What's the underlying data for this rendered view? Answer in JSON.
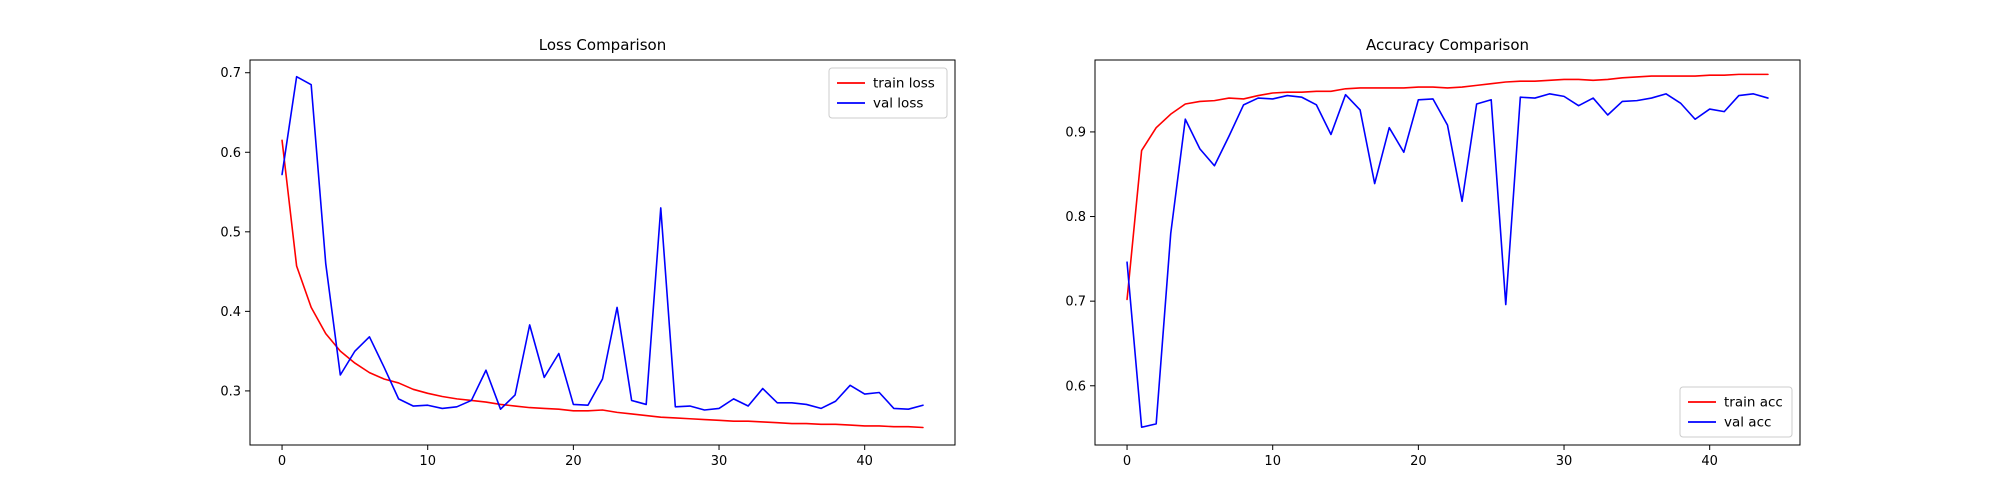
{
  "chart_data": [
    {
      "type": "line",
      "title": "Loss Comparison",
      "xlabel": "",
      "ylabel": "",
      "xlim": [
        -2.2,
        46.2
      ],
      "ylim": [
        0.232,
        0.716
      ],
      "xticks": [
        0,
        10,
        20,
        30,
        40
      ],
      "yticks": [
        0.3,
        0.4,
        0.5,
        0.6,
        0.7
      ],
      "ytick_labels": [
        "0.3",
        "0.4",
        "0.5",
        "0.6",
        "0.7"
      ],
      "grid": false,
      "legend_position": "upper-right",
      "series": [
        {
          "name": "train loss",
          "color": "#ff0000",
          "x": [
            0,
            1,
            2,
            3,
            4,
            5,
            6,
            7,
            8,
            9,
            10,
            11,
            12,
            13,
            14,
            15,
            16,
            17,
            18,
            19,
            20,
            21,
            22,
            23,
            24,
            25,
            26,
            27,
            28,
            29,
            30,
            31,
            32,
            33,
            34,
            35,
            36,
            37,
            38,
            39,
            40,
            41,
            42,
            43,
            44
          ],
          "values": [
            0.615,
            0.457,
            0.405,
            0.372,
            0.35,
            0.335,
            0.323,
            0.315,
            0.31,
            0.302,
            0.297,
            0.293,
            0.29,
            0.288,
            0.286,
            0.283,
            0.281,
            0.279,
            0.278,
            0.277,
            0.275,
            0.275,
            0.276,
            0.273,
            0.271,
            0.269,
            0.267,
            0.266,
            0.265,
            0.264,
            0.263,
            0.262,
            0.262,
            0.261,
            0.26,
            0.259,
            0.259,
            0.258,
            0.258,
            0.257,
            0.256,
            0.256,
            0.255,
            0.255,
            0.254
          ]
        },
        {
          "name": "val loss",
          "color": "#0000ff",
          "x": [
            0,
            1,
            2,
            3,
            4,
            5,
            6,
            7,
            8,
            9,
            10,
            11,
            12,
            13,
            14,
            15,
            16,
            17,
            18,
            19,
            20,
            21,
            22,
            23,
            24,
            25,
            26,
            27,
            28,
            29,
            30,
            31,
            32,
            33,
            34,
            35,
            36,
            37,
            38,
            39,
            40,
            41,
            42,
            43,
            44
          ],
          "values": [
            0.572,
            0.695,
            0.685,
            0.46,
            0.32,
            0.35,
            0.368,
            0.33,
            0.29,
            0.281,
            0.282,
            0.278,
            0.28,
            0.288,
            0.326,
            0.277,
            0.295,
            0.383,
            0.317,
            0.347,
            0.283,
            0.282,
            0.315,
            0.405,
            0.288,
            0.283,
            0.53,
            0.28,
            0.281,
            0.276,
            0.278,
            0.29,
            0.281,
            0.303,
            0.285,
            0.285,
            0.283,
            0.278,
            0.287,
            0.307,
            0.296,
            0.298,
            0.278,
            0.277,
            0.282
          ]
        }
      ]
    },
    {
      "type": "line",
      "title": "Accuracy Comparison",
      "xlabel": "",
      "ylabel": "",
      "xlim": [
        -2.2,
        46.2
      ],
      "ylim": [
        0.53,
        0.985
      ],
      "xticks": [
        0,
        10,
        20,
        30,
        40
      ],
      "yticks": [
        0.6,
        0.7,
        0.8,
        0.9
      ],
      "ytick_labels": [
        "0.6",
        "0.7",
        "0.8",
        "0.9"
      ],
      "grid": false,
      "legend_position": "lower-right",
      "series": [
        {
          "name": "train acc",
          "color": "#ff0000",
          "x": [
            0,
            1,
            2,
            3,
            4,
            5,
            6,
            7,
            8,
            9,
            10,
            11,
            12,
            13,
            14,
            15,
            16,
            17,
            18,
            19,
            20,
            21,
            22,
            23,
            24,
            25,
            26,
            27,
            28,
            29,
            30,
            31,
            32,
            33,
            34,
            35,
            36,
            37,
            38,
            39,
            40,
            41,
            42,
            43,
            44
          ],
          "values": [
            0.702,
            0.878,
            0.905,
            0.921,
            0.933,
            0.936,
            0.937,
            0.94,
            0.939,
            0.943,
            0.946,
            0.947,
            0.947,
            0.948,
            0.948,
            0.951,
            0.952,
            0.952,
            0.952,
            0.952,
            0.953,
            0.953,
            0.952,
            0.953,
            0.955,
            0.957,
            0.959,
            0.96,
            0.96,
            0.961,
            0.962,
            0.962,
            0.961,
            0.962,
            0.964,
            0.965,
            0.966,
            0.966,
            0.966,
            0.966,
            0.967,
            0.967,
            0.968,
            0.968,
            0.968
          ]
        },
        {
          "name": "val acc",
          "color": "#0000ff",
          "x": [
            0,
            1,
            2,
            3,
            4,
            5,
            6,
            7,
            8,
            9,
            10,
            11,
            12,
            13,
            14,
            15,
            16,
            17,
            18,
            19,
            20,
            21,
            22,
            23,
            24,
            25,
            26,
            27,
            28,
            29,
            30,
            31,
            32,
            33,
            34,
            35,
            36,
            37,
            38,
            39,
            40,
            41,
            42,
            43,
            44
          ],
          "values": [
            0.746,
            0.551,
            0.555,
            0.78,
            0.915,
            0.88,
            0.86,
            0.895,
            0.932,
            0.94,
            0.939,
            0.943,
            0.941,
            0.932,
            0.897,
            0.944,
            0.926,
            0.839,
            0.905,
            0.876,
            0.938,
            0.939,
            0.908,
            0.818,
            0.933,
            0.938,
            0.696,
            0.941,
            0.94,
            0.945,
            0.942,
            0.931,
            0.94,
            0.92,
            0.936,
            0.937,
            0.94,
            0.945,
            0.934,
            0.915,
            0.927,
            0.924,
            0.943,
            0.945,
            0.94
          ]
        }
      ]
    }
  ]
}
